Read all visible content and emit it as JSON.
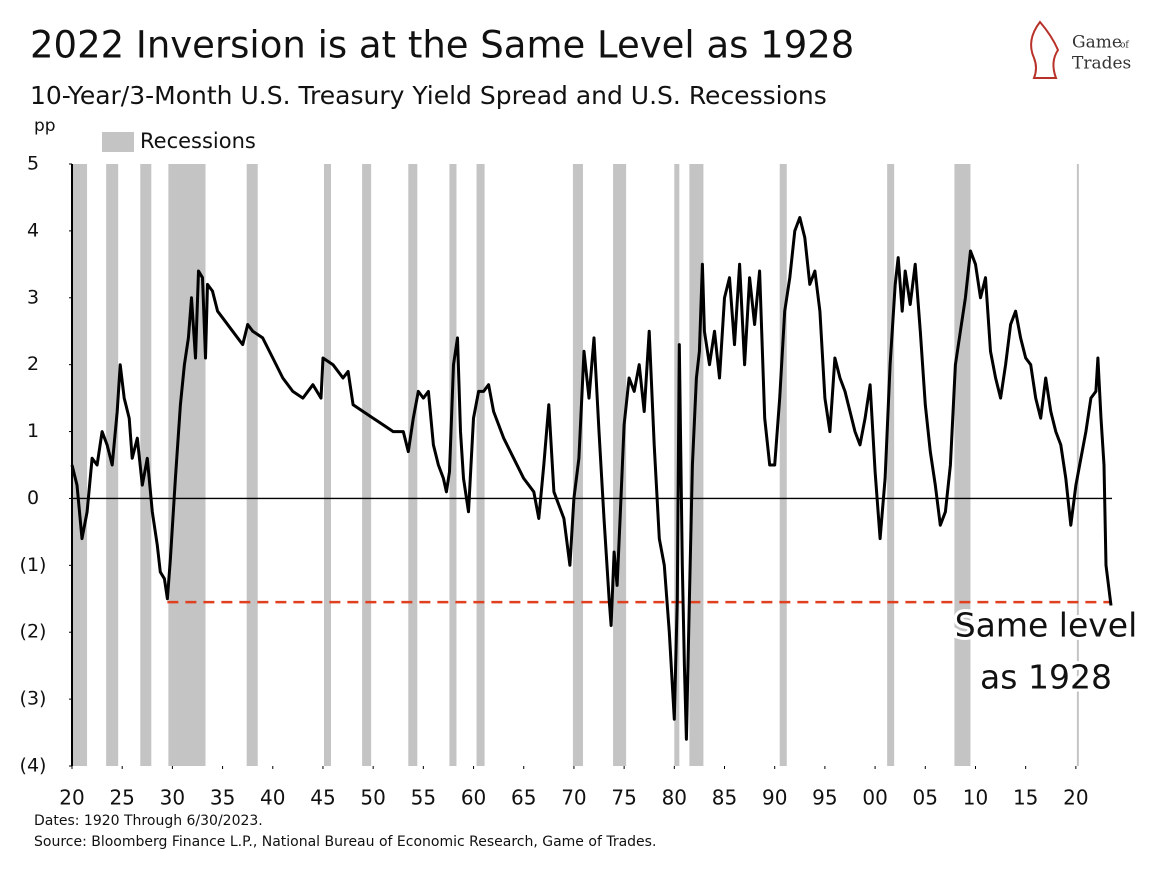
{
  "chart_data": {
    "type": "line",
    "title": "2022 Inversion is at the Same Level as 1928",
    "subtitle": "10-Year/3-Month U.S. Treasury Yield Spread and U.S. Recessions",
    "y_label": "pp",
    "recessions_label": "Recessions",
    "recession_color": "#c4c4c4",
    "recessions": [
      [
        1920.0,
        1921.5
      ],
      [
        1923.4,
        1924.6
      ],
      [
        1926.8,
        1927.9
      ],
      [
        1929.6,
        1933.3
      ],
      [
        1937.4,
        1938.5
      ],
      [
        1945.1,
        1945.8
      ],
      [
        1948.9,
        1949.8
      ],
      [
        1953.5,
        1954.4
      ],
      [
        1957.6,
        1958.3
      ],
      [
        1960.3,
        1961.1
      ],
      [
        1969.9,
        1970.9
      ],
      [
        1973.9,
        1975.2
      ],
      [
        1980.0,
        1980.5
      ],
      [
        1981.5,
        1982.9
      ],
      [
        1990.5,
        1991.2
      ],
      [
        2001.2,
        2001.9
      ],
      [
        2007.9,
        2009.5
      ],
      [
        2020.1,
        2020.3
      ]
    ],
    "x": [
      1920.0,
      1920.5,
      1921,
      1921.5,
      1922,
      1922.5,
      1923,
      1923.5,
      1924,
      1924.5,
      1924.8,
      1925.2,
      1925.7,
      1926,
      1926.5,
      1927,
      1927.5,
      1928,
      1928.5,
      1928.8,
      1929.2,
      1929.5,
      1929.8,
      1930.3,
      1930.8,
      1931.2,
      1931.6,
      1931.9,
      1932.3,
      1932.6,
      1933,
      1933.3,
      1933.5,
      1934,
      1934.5,
      1935,
      1936,
      1937,
      1937.5,
      1938,
      1939,
      1940,
      1941,
      1942,
      1943,
      1944,
      1944.8,
      1945,
      1946,
      1947,
      1947.5,
      1948,
      1949,
      1950,
      1951,
      1952,
      1953,
      1953.5,
      1954,
      1954.5,
      1955,
      1955.5,
      1956,
      1956.5,
      1957,
      1957.3,
      1957.6,
      1958,
      1958.4,
      1958.7,
      1959,
      1959.5,
      1960,
      1960.5,
      1961,
      1961.5,
      1962,
      1963,
      1964,
      1965,
      1966,
      1966.5,
      1967,
      1967.5,
      1968,
      1969,
      1969.6,
      1970,
      1970.5,
      1971,
      1971.5,
      1972,
      1972.5,
      1973,
      1973.5,
      1973.7,
      1974,
      1974.3,
      1974.6,
      1975,
      1975.5,
      1976,
      1976.5,
      1977,
      1977.5,
      1978,
      1978.5,
      1979,
      1979.5,
      1980,
      1980.3,
      1980.5,
      1980.8,
      1981,
      1981.2,
      1981.5,
      1981.8,
      1982.2,
      1982.5,
      1982.8,
      1983,
      1983.5,
      1984,
      1984.5,
      1985,
      1985.5,
      1986,
      1986.5,
      1987,
      1987.5,
      1988,
      1988.5,
      1989,
      1989.5,
      1990,
      1990.5,
      1991,
      1991.5,
      1992,
      1992.5,
      1993,
      1993.5,
      1994,
      1994.5,
      1995,
      1995.5,
      1996,
      1996.5,
      1997,
      1997.5,
      1998,
      1998.5,
      1999,
      1999.5,
      2000,
      2000.5,
      2001,
      2001.5,
      2002,
      2002.3,
      2002.7,
      2003,
      2003.5,
      2004,
      2004.5,
      2005,
      2005.5,
      2006,
      2006.5,
      2007,
      2007.5,
      2008,
      2008.5,
      2009,
      2009.5,
      2010,
      2010.5,
      2011,
      2011.5,
      2012,
      2012.5,
      2013,
      2013.5,
      2014,
      2014.5,
      2015,
      2015.5,
      2016,
      2016.5,
      2017,
      2017.5,
      2018,
      2018.5,
      2019,
      2019.5,
      2020,
      2020.5,
      2021,
      2021.5,
      2022,
      2022.2,
      2022.5,
      2022.8,
      2023,
      2023.5
    ],
    "series": [
      {
        "color": "#000000",
        "values": [
          0.5,
          0.2,
          -0.6,
          -0.2,
          0.6,
          0.5,
          1.0,
          0.8,
          0.5,
          1.3,
          2.0,
          1.5,
          1.2,
          0.6,
          0.9,
          0.2,
          0.6,
          -0.2,
          -0.7,
          -1.1,
          -1.2,
          -1.5,
          -0.9,
          0.3,
          1.4,
          2.0,
          2.4,
          3.0,
          2.1,
          3.4,
          3.3,
          2.1,
          3.2,
          3.1,
          2.8,
          2.7,
          2.5,
          2.3,
          2.6,
          2.5,
          2.4,
          2.1,
          1.8,
          1.6,
          1.5,
          1.7,
          1.5,
          2.1,
          2.0,
          1.8,
          1.9,
          1.4,
          1.3,
          1.2,
          1.1,
          1.0,
          1.0,
          0.7,
          1.2,
          1.6,
          1.5,
          1.6,
          0.8,
          0.5,
          0.3,
          0.1,
          0.4,
          2.0,
          2.4,
          1.0,
          0.3,
          -0.2,
          1.2,
          1.6,
          1.6,
          1.7,
          1.3,
          0.9,
          0.6,
          0.3,
          0.1,
          -0.3,
          0.5,
          1.4,
          0.1,
          -0.3,
          -1.0,
          0.0,
          0.6,
          2.2,
          1.5,
          2.4,
          1.0,
          -0.3,
          -1.5,
          -1.9,
          -0.8,
          -1.3,
          -0.3,
          1.1,
          1.8,
          1.6,
          2.0,
          1.3,
          2.5,
          0.8,
          -0.6,
          -1.0,
          -2.0,
          -3.3,
          -1.5,
          2.3,
          -1.0,
          -2.5,
          -3.6,
          -1.5,
          0.5,
          1.8,
          2.2,
          3.5,
          2.5,
          2.0,
          2.5,
          1.8,
          3.0,
          3.3,
          2.3,
          3.5,
          2.0,
          3.3,
          2.6,
          3.4,
          1.2,
          0.5,
          0.5,
          1.5,
          2.8,
          3.3,
          4.0,
          4.2,
          3.9,
          3.2,
          3.4,
          2.8,
          1.5,
          1.0,
          2.1,
          1.8,
          1.6,
          1.3,
          1.0,
          0.8,
          1.2,
          1.7,
          0.4,
          -0.6,
          0.3,
          2.0,
          3.2,
          3.6,
          2.8,
          3.4,
          2.9,
          3.5,
          2.5,
          1.4,
          0.7,
          0.2,
          -0.4,
          -0.2,
          0.5,
          2.0,
          2.5,
          3.0,
          3.7,
          3.5,
          3.0,
          3.3,
          2.2,
          1.8,
          1.5,
          2.0,
          2.6,
          2.8,
          2.4,
          2.1,
          2.0,
          1.5,
          1.2,
          1.8,
          1.3,
          1.0,
          0.8,
          0.3,
          -0.4,
          0.2,
          0.6,
          1.0,
          1.5,
          1.6,
          2.1,
          1.2,
          0.5,
          -1.0,
          -1.6
        ]
      }
    ],
    "reference_line": {
      "value": -1.55,
      "from": 1929.5,
      "to": 2023.5,
      "color": "#e0401f"
    },
    "annotation": [
      "Same level",
      "as 1928"
    ],
    "xlim": [
      1920,
      2023.6
    ],
    "ylim": [
      -4,
      5
    ],
    "xticks": [
      {
        "value": 1920,
        "label": "20"
      },
      {
        "value": 1925,
        "label": "25"
      },
      {
        "value": 1930,
        "label": "30"
      },
      {
        "value": 1935,
        "label": "35"
      },
      {
        "value": 1940,
        "label": "40"
      },
      {
        "value": 1945,
        "label": "45"
      },
      {
        "value": 1950,
        "label": "50"
      },
      {
        "value": 1955,
        "label": "55"
      },
      {
        "value": 1960,
        "label": "60"
      },
      {
        "value": 1965,
        "label": "65"
      },
      {
        "value": 1970,
        "label": "70"
      },
      {
        "value": 1975,
        "label": "75"
      },
      {
        "value": 1980,
        "label": "80"
      },
      {
        "value": 1985,
        "label": "85"
      },
      {
        "value": 1990,
        "label": "90"
      },
      {
        "value": 1995,
        "label": "95"
      },
      {
        "value": 2000,
        "label": "00"
      },
      {
        "value": 2005,
        "label": "05"
      },
      {
        "value": 2010,
        "label": "10"
      },
      {
        "value": 2015,
        "label": "15"
      },
      {
        "value": 2020,
        "label": "20"
      }
    ],
    "yticks": [
      {
        "value": -4,
        "label": "(4)"
      },
      {
        "value": -3,
        "label": "(3)"
      },
      {
        "value": -2,
        "label": "(2)"
      },
      {
        "value": -1,
        "label": "(1)"
      },
      0,
      1,
      2,
      3,
      4,
      5
    ],
    "notes": [
      "Dates: 1920 Through 6/30/2023.",
      "Source: Bloomberg Finance L.P., National Bureau of Economic Research, Game of Trades."
    ],
    "logo": [
      "Game",
      "of",
      "Trades"
    ]
  }
}
